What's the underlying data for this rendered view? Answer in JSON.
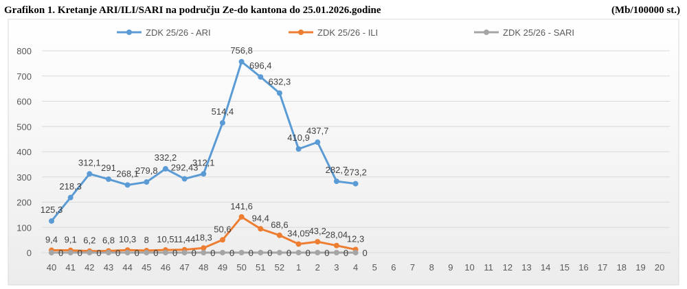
{
  "chart_data": {
    "type": "line",
    "title": "Grafikon 1. Kretanje ARI/ILI/SARI na području Ze-do kantona do 25.01.2026.godine",
    "subtitle": "(Mb/100000 st.)",
    "categories": [
      "40",
      "41",
      "42",
      "43",
      "44",
      "45",
      "46",
      "47",
      "48",
      "49",
      "50",
      "51",
      "52",
      "1",
      "2",
      "3",
      "4",
      "5",
      "6",
      "7",
      "8",
      "9",
      "10",
      "11",
      "12",
      "13",
      "14",
      "15",
      "16",
      "17",
      "18",
      "19",
      "20"
    ],
    "series": [
      {
        "name": "ZDK 25/26 - ARI",
        "color": "#5b9bd5",
        "values": [
          125.3,
          218.3,
          312.1,
          291,
          268.1,
          279.8,
          332.2,
          292.43,
          312.1,
          514.4,
          756.8,
          696.4,
          632.3,
          410.9,
          437.7,
          282.7,
          273.2,
          null,
          null,
          null,
          null,
          null,
          null,
          null,
          null,
          null,
          null,
          null,
          null,
          null,
          null,
          null,
          null
        ],
        "value_labels": [
          "125,3",
          "218,3",
          "312,1",
          "291",
          "268,1",
          "279,8",
          "332,2",
          "292,43",
          "312,1",
          "514,4",
          "756,8",
          "696,4",
          "632,3",
          "410,9",
          "437,7",
          "282,7",
          "273,2",
          null,
          null,
          null,
          null,
          null,
          null,
          null,
          null,
          null,
          null,
          null,
          null,
          null,
          null,
          null,
          null
        ]
      },
      {
        "name": "ZDK 25/26 - ILI",
        "color": "#ed7d31",
        "values": [
          9.4,
          9.1,
          6.2,
          6.8,
          10.3,
          8,
          10.5,
          11.44,
          18.3,
          50.6,
          141.6,
          94.4,
          68.6,
          34.05,
          43.2,
          28.04,
          12.3,
          null,
          null,
          null,
          null,
          null,
          null,
          null,
          null,
          null,
          null,
          null,
          null,
          null,
          null,
          null,
          null
        ],
        "value_labels": [
          "9,4",
          "9,1",
          "6,2",
          "6,8",
          "10,3",
          "8",
          "10,5",
          "11,44",
          "18,3",
          "50,6",
          "141,6",
          "94,4",
          "68,6",
          "34,05",
          "43,2",
          "28,04",
          "12,3",
          null,
          null,
          null,
          null,
          null,
          null,
          null,
          null,
          null,
          null,
          null,
          null,
          null,
          null,
          null,
          null
        ]
      },
      {
        "name": "ZDK 25/26 - SARI",
        "color": "#a5a5a5",
        "values": [
          0,
          0,
          0,
          0,
          0,
          0,
          0,
          0,
          0,
          0,
          0,
          0,
          0,
          0,
          0,
          0,
          0,
          null,
          null,
          null,
          null,
          null,
          null,
          null,
          null,
          null,
          null,
          null,
          null,
          null,
          null,
          null,
          null
        ]
      }
    ],
    "ylim": [
      0,
      800
    ],
    "yticks": [
      0,
      100,
      200,
      300,
      400,
      500,
      600,
      700,
      800
    ],
    "grid": true
  }
}
